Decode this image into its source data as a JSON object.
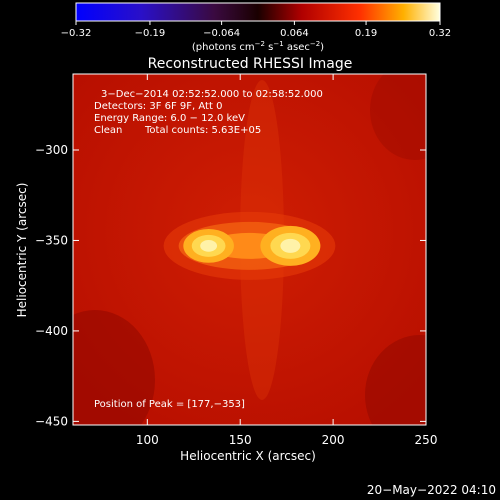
{
  "colorbar": {
    "tick_labels": [
      "−0.32",
      "−0.19",
      "−0.064",
      "0.064",
      "0.19",
      "0.32"
    ],
    "tick_values": [
      -0.32,
      -0.19,
      -0.064,
      0.064,
      0.19,
      0.32
    ],
    "range": [
      -0.32,
      0.32
    ],
    "unit_label_parts": [
      "(photons cm",
      "−2",
      " s",
      "−1",
      " asec",
      "−2",
      ")"
    ]
  },
  "chart_data": {
    "type": "heatmap",
    "title": "Reconstructed RHESSI Image",
    "xlabel": "Heliocentric X (arcsec)",
    "ylabel": "Heliocentric Y (arcsec)",
    "xlim": [
      60,
      250
    ],
    "ylim": [
      -452,
      -258
    ],
    "x_ticks": [
      100,
      150,
      200,
      250
    ],
    "x_tick_labels": [
      "100",
      "150",
      "200",
      "250"
    ],
    "y_ticks": [
      -300,
      -350,
      -400,
      -450
    ],
    "y_tick_labels": [
      "−300",
      "−350",
      "−400",
      "−450"
    ],
    "sources": [
      {
        "x": 177,
        "y": -353,
        "peak": 0.32
      },
      {
        "x": 133,
        "y": -353,
        "peak": 0.27
      }
    ],
    "annotations": {
      "time_range": "3−Dec−2014 02:52:52.000 to 02:58:52.000",
      "detectors": "Detectors: 3F 6F 9F, Att 0",
      "energy_range": "Energy Range: 6.0 − 12.0 keV",
      "clean_label": "Clean",
      "total_counts": "Total counts: 5.63E+05",
      "peak_position": "Position of Peak = [177,−353]"
    }
  },
  "footer": {
    "timestamp": "20−May−2022 04:10"
  }
}
